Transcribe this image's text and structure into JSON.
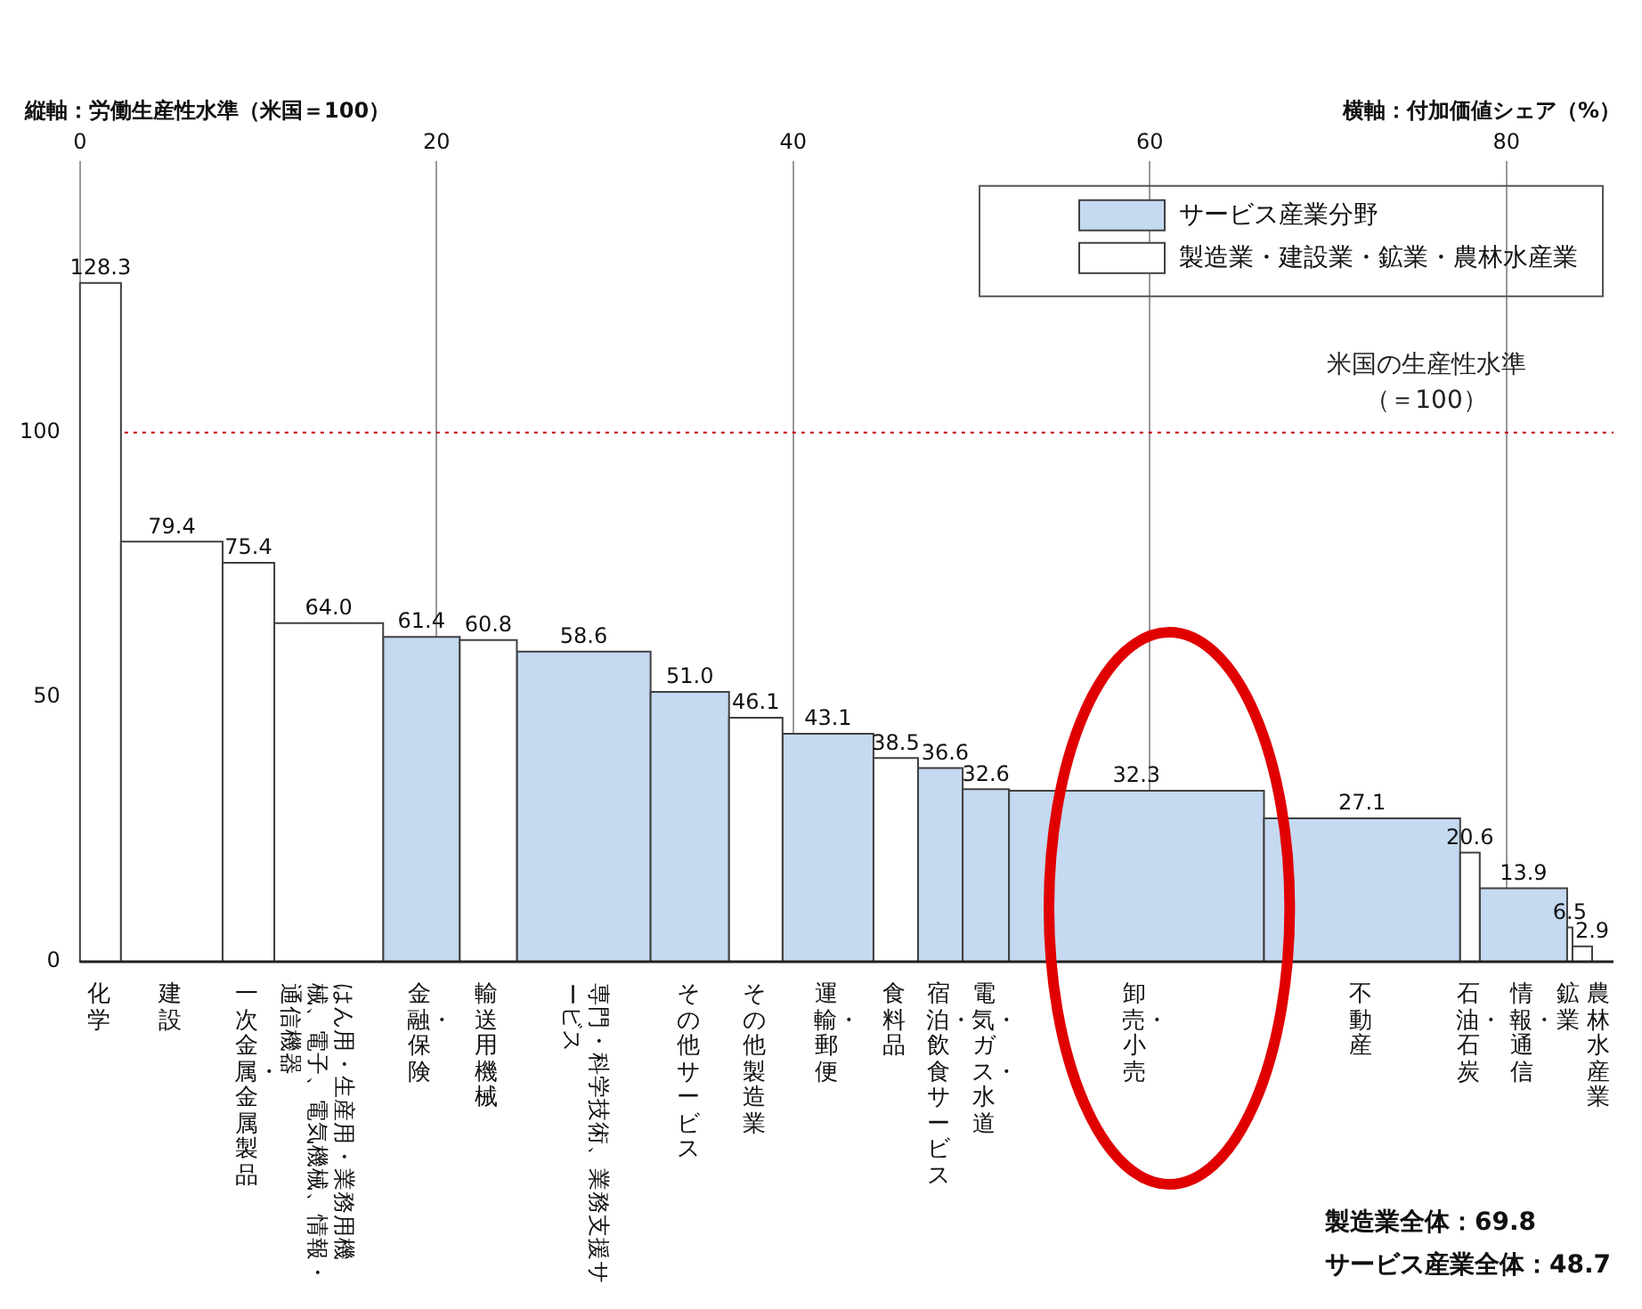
{
  "chart_data": {
    "type": "histogram",
    "ylabel": "縦軸：労働生産性水準（米国＝100）",
    "xlabel": "横軸：付加価値シェア（%）",
    "categories": [
      "化学",
      "建設",
      "一次金属・金属製品",
      "はん用・生産用・業務用機械、電子、電気機械、情報・通信機器",
      "金融・保険",
      "輸送用機械",
      "専門・科学技術、業務支援サービス",
      "その他サービス",
      "その他製造業",
      "運輸・郵便",
      "食料品",
      "宿泊・飲食サービス",
      "電気・ガス・水道",
      "卸売・小売",
      "不動産",
      "石油・石炭",
      "情報・通信",
      "鉱業",
      "農林水産業"
    ],
    "bins": [
      0,
      2.3,
      8.0,
      10.9,
      17.0,
      21.3,
      24.5,
      32.0,
      36.4,
      39.4,
      44.5,
      47.0,
      49.5,
      52.1,
      66.4,
      77.4,
      78.5,
      83.4,
      83.7,
      84.8
    ],
    "series": [
      {
        "name": "サービス産業分野",
        "color": "#c5d9f1",
        "values": [
          null,
          null,
          null,
          null,
          61.4,
          null,
          58.6,
          51.0,
          null,
          43.1,
          null,
          36.6,
          32.6,
          32.3,
          27.1,
          null,
          13.9,
          null,
          null
        ],
        "value_labels": [
          null,
          null,
          null,
          null,
          "61.4",
          null,
          "58.6",
          "51.0",
          null,
          "43.1",
          null,
          "36.6",
          "32.6",
          "32.3",
          "27.1",
          null,
          "13.9",
          null,
          null
        ]
      },
      {
        "name": "製造業・建設業・鉱業・農林水産業",
        "color": "#ffffff",
        "values": [
          128.3,
          79.4,
          75.4,
          64.0,
          null,
          60.8,
          null,
          null,
          46.1,
          null,
          38.5,
          null,
          null,
          null,
          null,
          20.6,
          null,
          6.5,
          2.9
        ],
        "value_labels": [
          "128.3",
          "79.4",
          "75.4",
          "64.0",
          null,
          "60.8",
          null,
          null,
          "46.1",
          null,
          "38.5",
          null,
          null,
          null,
          null,
          "20.6",
          null,
          "6.5",
          "2.9"
        ]
      }
    ],
    "xlim": [
      0,
      86
    ],
    "xticks": [
      0,
      20,
      40,
      60,
      80
    ],
    "ylim": [
      0,
      150
    ],
    "yticks": [
      0,
      50,
      100
    ],
    "grid": "x",
    "legend": "top right",
    "ref_lines": [
      {
        "axis": "y",
        "value": 100,
        "label": "米国の生産性水準（＝100）",
        "color": "#c00000",
        "line_style": "dotted"
      }
    ],
    "annotations": [
      "製造業全体：69.8",
      "サービス産業全体：48.7"
    ]
  }
}
